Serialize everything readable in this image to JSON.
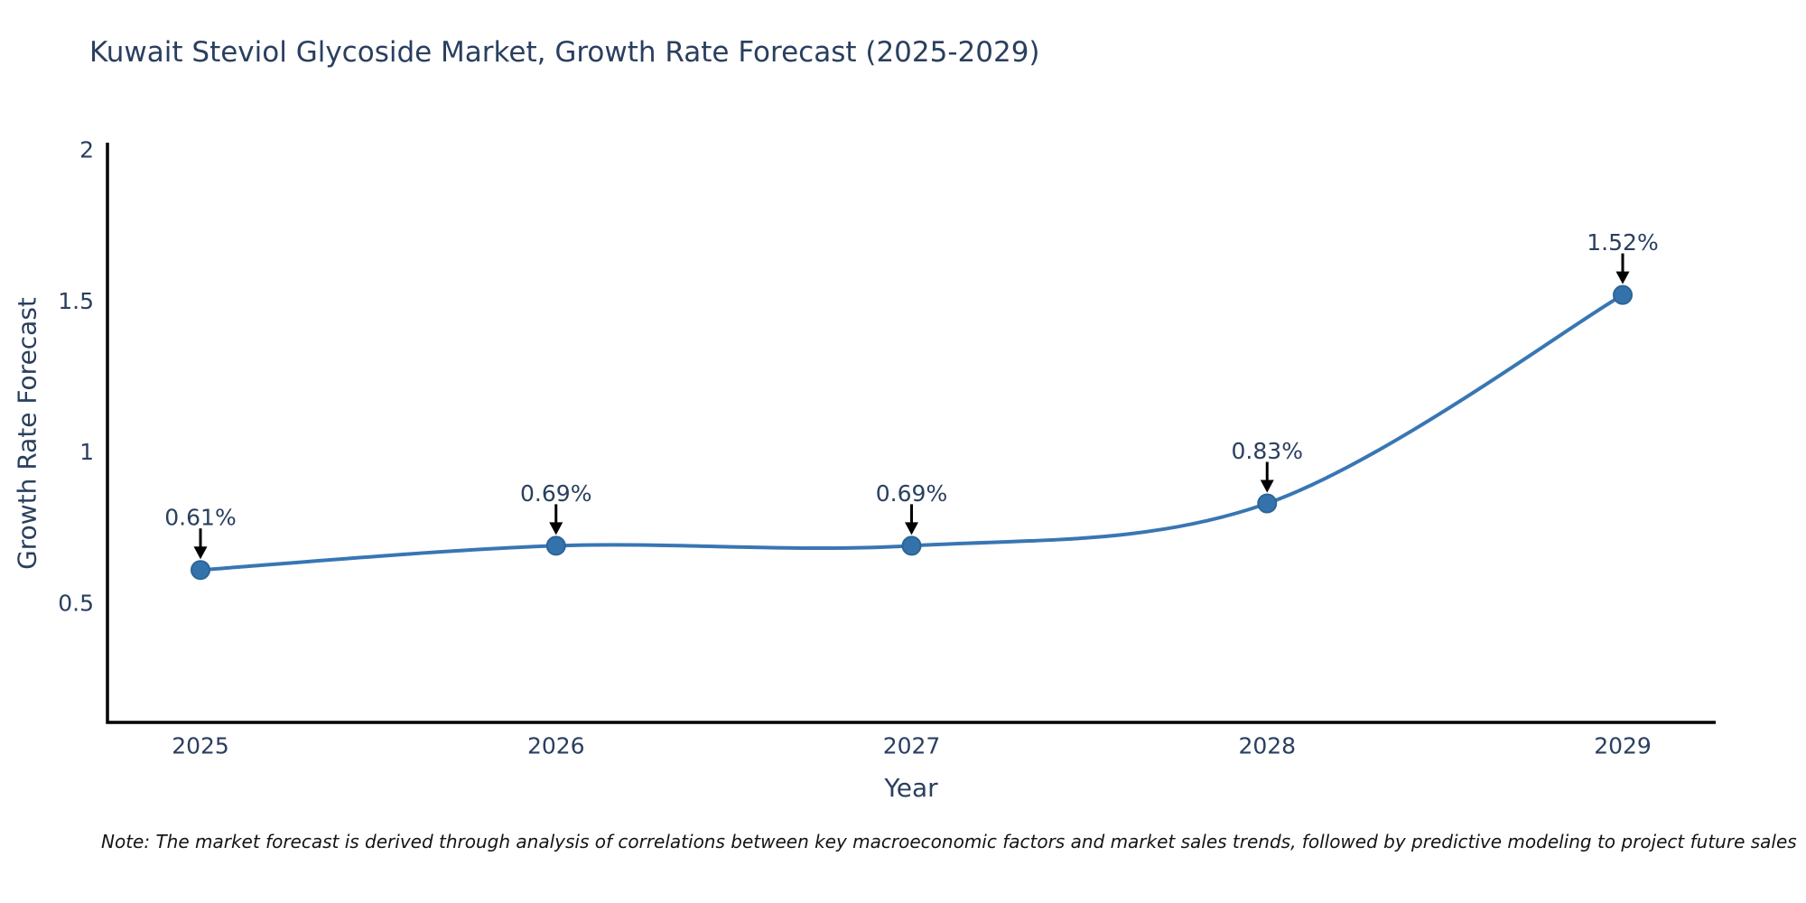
{
  "page": {
    "background": "#ffffff"
  },
  "chart_data": {
    "type": "line",
    "title": "Kuwait Steviol Glycoside Market, Growth Rate Forecast (2025-2029)",
    "xlabel": "Year",
    "ylabel": "Growth Rate Forecast",
    "categories": [
      "2025",
      "2026",
      "2027",
      "2028",
      "2029"
    ],
    "series": [
      {
        "name": "Growth Rate Forecast",
        "values": [
          0.61,
          0.69,
          0.69,
          0.83,
          1.52
        ]
      }
    ],
    "point_labels": [
      "0.61%",
      "0.69%",
      "0.69%",
      "0.83%",
      "1.52%"
    ],
    "yticks": [
      0.5,
      1,
      1.5,
      2
    ],
    "ytick_labels": [
      "0.5",
      "1",
      "1.5",
      "2"
    ],
    "ylim": [
      0.1,
      2.02
    ],
    "grid": false,
    "legend": "none",
    "line_shape": "spline",
    "colors": {
      "line": "#3876b4",
      "marker_fill": "#3472ab",
      "marker_edge": "#2d6498",
      "axis": "#000000",
      "arrow": "#000000",
      "text": "#2a3f5f"
    },
    "note": "Note: The market forecast is derived through analysis of correlations between key macroeconomic factors and market sales trends, followed by predictive modeling to project future sales"
  }
}
